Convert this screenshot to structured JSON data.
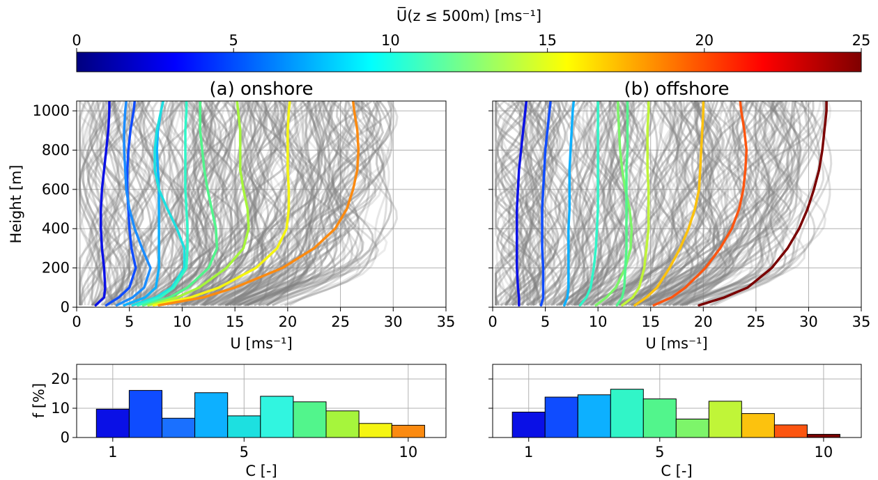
{
  "colorbar": {
    "label": "U̅(z ≤ 500m) [ms⁻¹]",
    "ticks": [
      "0",
      "5",
      "10",
      "15",
      "20",
      "25"
    ],
    "range": [
      0,
      25
    ],
    "colormap": "jet"
  },
  "chart_data": [
    {
      "type": "line",
      "panel": "(a)   onshore",
      "title": "(a)   onshore",
      "xlabel": "U [ms⁻¹]",
      "ylabel": "Height [m]",
      "xlim": [
        0,
        35
      ],
      "ylim": [
        0,
        1050
      ],
      "xticks": [
        "0",
        "5",
        "10",
        "15",
        "20",
        "25",
        "30",
        "35"
      ],
      "yticks": [
        "0",
        "200",
        "400",
        "600",
        "800",
        "1000"
      ],
      "grid": true,
      "background_profiles": {
        "color": "#808080",
        "count": "many",
        "max_speed": 32
      },
      "series": [
        {
          "color": "#0a10e6",
          "heights": [
            10,
            50,
            100,
            200,
            300,
            400,
            500,
            600,
            700,
            800,
            900,
            1000,
            1050
          ],
          "values": [
            1.8,
            2.6,
            2.7,
            2.6,
            2.4,
            2.3,
            2.3,
            2.4,
            2.6,
            2.8,
            3.0,
            3.1,
            3.1
          ]
        },
        {
          "color": "#0f4cff",
          "heights": [
            10,
            50,
            100,
            200,
            300,
            400,
            500,
            600,
            700,
            800,
            900,
            1000,
            1050
          ],
          "values": [
            2.8,
            4.0,
            5.0,
            5.6,
            5.2,
            5.0,
            4.9,
            4.8,
            4.8,
            4.9,
            5.1,
            5.4,
            5.5
          ]
        },
        {
          "color": "#1a8cff",
          "heights": [
            10,
            50,
            100,
            200,
            300,
            400,
            500,
            600,
            700,
            800,
            900,
            1000,
            1050
          ],
          "values": [
            3.8,
            5.3,
            6.4,
            7.0,
            6.2,
            5.5,
            5.0,
            4.7,
            4.6,
            4.5,
            4.5,
            4.6,
            4.7
          ]
        },
        {
          "color": "#0db0ff",
          "heights": [
            10,
            50,
            100,
            200,
            300,
            400,
            500,
            600,
            700,
            800,
            900,
            1000,
            1050
          ],
          "values": [
            4.5,
            6.5,
            7.5,
            7.8,
            7.8,
            7.8,
            7.8,
            7.8,
            7.7,
            7.6,
            7.7,
            8.0,
            8.2
          ]
        },
        {
          "color": "#1de0e0",
          "heights": [
            10,
            50,
            100,
            200,
            300,
            400,
            500,
            600,
            700,
            800,
            900,
            1000,
            1050
          ],
          "values": [
            5.3,
            7.5,
            9.0,
            10.2,
            10.2,
            9.5,
            8.6,
            7.8,
            7.4,
            7.4,
            7.6,
            8.0,
            8.2
          ]
        },
        {
          "color": "#31f5c8",
          "heights": [
            10,
            50,
            100,
            200,
            300,
            400,
            500,
            600,
            700,
            800,
            900,
            1000,
            1050
          ],
          "values": [
            5.8,
            7.9,
            9.2,
            10.4,
            10.5,
            10.5,
            10.4,
            10.3,
            10.3,
            10.3,
            10.3,
            10.4,
            10.4
          ]
        },
        {
          "color": "#52f58c",
          "heights": [
            10,
            50,
            100,
            200,
            300,
            400,
            500,
            600,
            700,
            800,
            900,
            1000,
            1050
          ],
          "values": [
            6.3,
            8.8,
            10.5,
            12.5,
            13.3,
            13.2,
            12.8,
            12.4,
            12.1,
            11.9,
            11.7,
            11.7,
            11.7
          ]
        },
        {
          "color": "#a6f53c",
          "heights": [
            10,
            50,
            100,
            200,
            300,
            400,
            500,
            600,
            700,
            800,
            900,
            1000,
            1050
          ],
          "values": [
            6.8,
            9.5,
            11.6,
            14.2,
            15.8,
            16.3,
            16.2,
            15.8,
            15.5,
            15.5,
            15.5,
            15.3,
            15.2
          ]
        },
        {
          "color": "#f5f512",
          "heights": [
            10,
            50,
            100,
            200,
            300,
            400,
            500,
            600,
            700,
            800,
            900,
            1000,
            1050
          ],
          "values": [
            7.3,
            10.8,
            13.5,
            17.0,
            19.0,
            19.9,
            20.1,
            20.1,
            20.0,
            20.0,
            20.0,
            20.1,
            20.2
          ]
        },
        {
          "color": "#fb8a10",
          "heights": [
            10,
            50,
            100,
            200,
            300,
            400,
            500,
            600,
            700,
            800,
            900,
            1000,
            1050
          ],
          "values": [
            7.8,
            12.0,
            15.0,
            19.5,
            22.5,
            24.5,
            25.6,
            26.2,
            26.6,
            26.7,
            26.6,
            26.3,
            26.2
          ]
        }
      ]
    },
    {
      "type": "line",
      "panel": "(b)   offshore",
      "title": "(b)   offshore",
      "xlabel": "U [ms⁻¹]",
      "ylabel": "",
      "xlim": [
        0,
        35
      ],
      "ylim": [
        0,
        1050
      ],
      "xticks": [
        "0",
        "5",
        "10",
        "15",
        "20",
        "25",
        "30",
        "35"
      ],
      "yticks": [],
      "grid": true,
      "background_profiles": {
        "color": "#808080",
        "count": "many",
        "max_speed": 34
      },
      "series": [
        {
          "color": "#0a10e6",
          "heights": [
            10,
            50,
            100,
            200,
            300,
            400,
            500,
            600,
            700,
            800,
            900,
            1000,
            1050
          ],
          "values": [
            2.5,
            2.5,
            2.4,
            2.3,
            2.3,
            2.3,
            2.3,
            2.4,
            2.5,
            2.7,
            2.9,
            3.1,
            3.2
          ]
        },
        {
          "color": "#0f4cff",
          "heights": [
            10,
            50,
            100,
            200,
            300,
            400,
            500,
            600,
            700,
            800,
            900,
            1000,
            1050
          ],
          "values": [
            4.6,
            4.8,
            4.8,
            4.8,
            4.7,
            4.7,
            4.7,
            4.8,
            4.9,
            5.0,
            5.2,
            5.4,
            5.5
          ]
        },
        {
          "color": "#0db0ff",
          "heights": [
            10,
            50,
            100,
            200,
            300,
            400,
            500,
            600,
            700,
            800,
            900,
            1000,
            1050
          ],
          "values": [
            6.8,
            7.1,
            7.2,
            7.2,
            7.2,
            7.2,
            7.3,
            7.3,
            7.3,
            7.4,
            7.5,
            7.6,
            7.7
          ]
        },
        {
          "color": "#31f5c8",
          "heights": [
            10,
            50,
            100,
            200,
            300,
            400,
            500,
            600,
            700,
            800,
            900,
            1000,
            1050
          ],
          "values": [
            8.3,
            8.9,
            9.3,
            9.6,
            9.8,
            9.9,
            10.0,
            10.0,
            10.0,
            10.0,
            10.0,
            10.0,
            10.0
          ]
        },
        {
          "color": "#7df56a",
          "heights": [
            10,
            50,
            100,
            200,
            300,
            400,
            500,
            600,
            700,
            800,
            900,
            1000,
            1050
          ],
          "values": [
            9.8,
            10.8,
            11.7,
            12.6,
            13.1,
            13.2,
            13.0,
            12.6,
            12.3,
            12.1,
            12.0,
            11.9,
            11.9
          ]
        },
        {
          "color": "#52f58c",
          "heights": [
            10,
            50,
            100,
            200,
            300,
            400,
            500,
            600,
            700,
            800,
            900,
            1000,
            1050
          ],
          "values": [
            11.8,
            12.3,
            12.5,
            12.6,
            12.7,
            12.7,
            12.7,
            12.7,
            12.7,
            12.8,
            12.8,
            12.8,
            12.8
          ]
        },
        {
          "color": "#c0f538",
          "heights": [
            10,
            50,
            100,
            200,
            300,
            400,
            500,
            600,
            700,
            800,
            900,
            1000,
            1050
          ],
          "values": [
            12.3,
            13.3,
            13.9,
            14.4,
            14.6,
            14.8,
            14.8,
            14.8,
            14.7,
            14.7,
            14.7,
            14.8,
            14.8
          ]
        },
        {
          "color": "#fcc20e",
          "heights": [
            10,
            50,
            100,
            200,
            300,
            400,
            500,
            600,
            700,
            800,
            900,
            1000,
            1050
          ],
          "values": [
            13.5,
            14.6,
            15.6,
            16.8,
            17.8,
            18.6,
            19.2,
            19.6,
            19.7,
            19.8,
            19.9,
            20.0,
            20.0
          ]
        },
        {
          "color": "#fc5510",
          "heights": [
            10,
            50,
            100,
            200,
            300,
            400,
            500,
            600,
            700,
            800,
            900,
            1000,
            1050
          ],
          "values": [
            15.3,
            17.0,
            18.3,
            20.2,
            21.6,
            22.7,
            23.4,
            23.8,
            24.0,
            24.1,
            23.9,
            23.6,
            23.5
          ]
        },
        {
          "color": "#7a0000",
          "heights": [
            10,
            50,
            100,
            200,
            300,
            400,
            500,
            600,
            700,
            800,
            900,
            1000,
            1050
          ],
          "values": [
            19.6,
            22.0,
            24.2,
            26.5,
            28.0,
            29.1,
            29.9,
            30.5,
            31.0,
            31.3,
            31.5,
            31.7,
            31.7
          ]
        }
      ]
    },
    {
      "type": "bar",
      "panel": "onshore-histogram",
      "xlabel": "C  [-]",
      "ylabel": "f [%]",
      "ylim": [
        0,
        25
      ],
      "xticks": [
        "1",
        "5",
        "10"
      ],
      "yticks": [
        "0",
        "10",
        "20"
      ],
      "grid": true,
      "categories": [
        1,
        2,
        3,
        4,
        5,
        6,
        7,
        8,
        9,
        10
      ],
      "values": [
        9.7,
        16.1,
        6.6,
        15.3,
        7.4,
        14.1,
        12.2,
        9.1,
        4.8,
        4.2
      ],
      "colors": [
        "#0a10e6",
        "#0f4cff",
        "#1a70ff",
        "#0db0ff",
        "#1de0e0",
        "#31f5e0",
        "#52f58c",
        "#a6f53c",
        "#f5f512",
        "#fb8a10"
      ]
    },
    {
      "type": "bar",
      "panel": "offshore-histogram",
      "xlabel": "C  [-]",
      "ylabel": "",
      "ylim": [
        0,
        25
      ],
      "xticks": [
        "1",
        "5",
        "10"
      ],
      "yticks": [],
      "grid": true,
      "categories": [
        1,
        2,
        3,
        4,
        5,
        6,
        7,
        8,
        9,
        10
      ],
      "values": [
        8.7,
        13.8,
        14.6,
        16.5,
        13.2,
        6.3,
        12.4,
        8.2,
        4.3,
        1.1
      ],
      "colors": [
        "#0a10e6",
        "#0f4cff",
        "#0db0ff",
        "#31f5c8",
        "#52f58c",
        "#7df56a",
        "#c0f538",
        "#fcc20e",
        "#fc5510",
        "#7a0000"
      ]
    }
  ]
}
